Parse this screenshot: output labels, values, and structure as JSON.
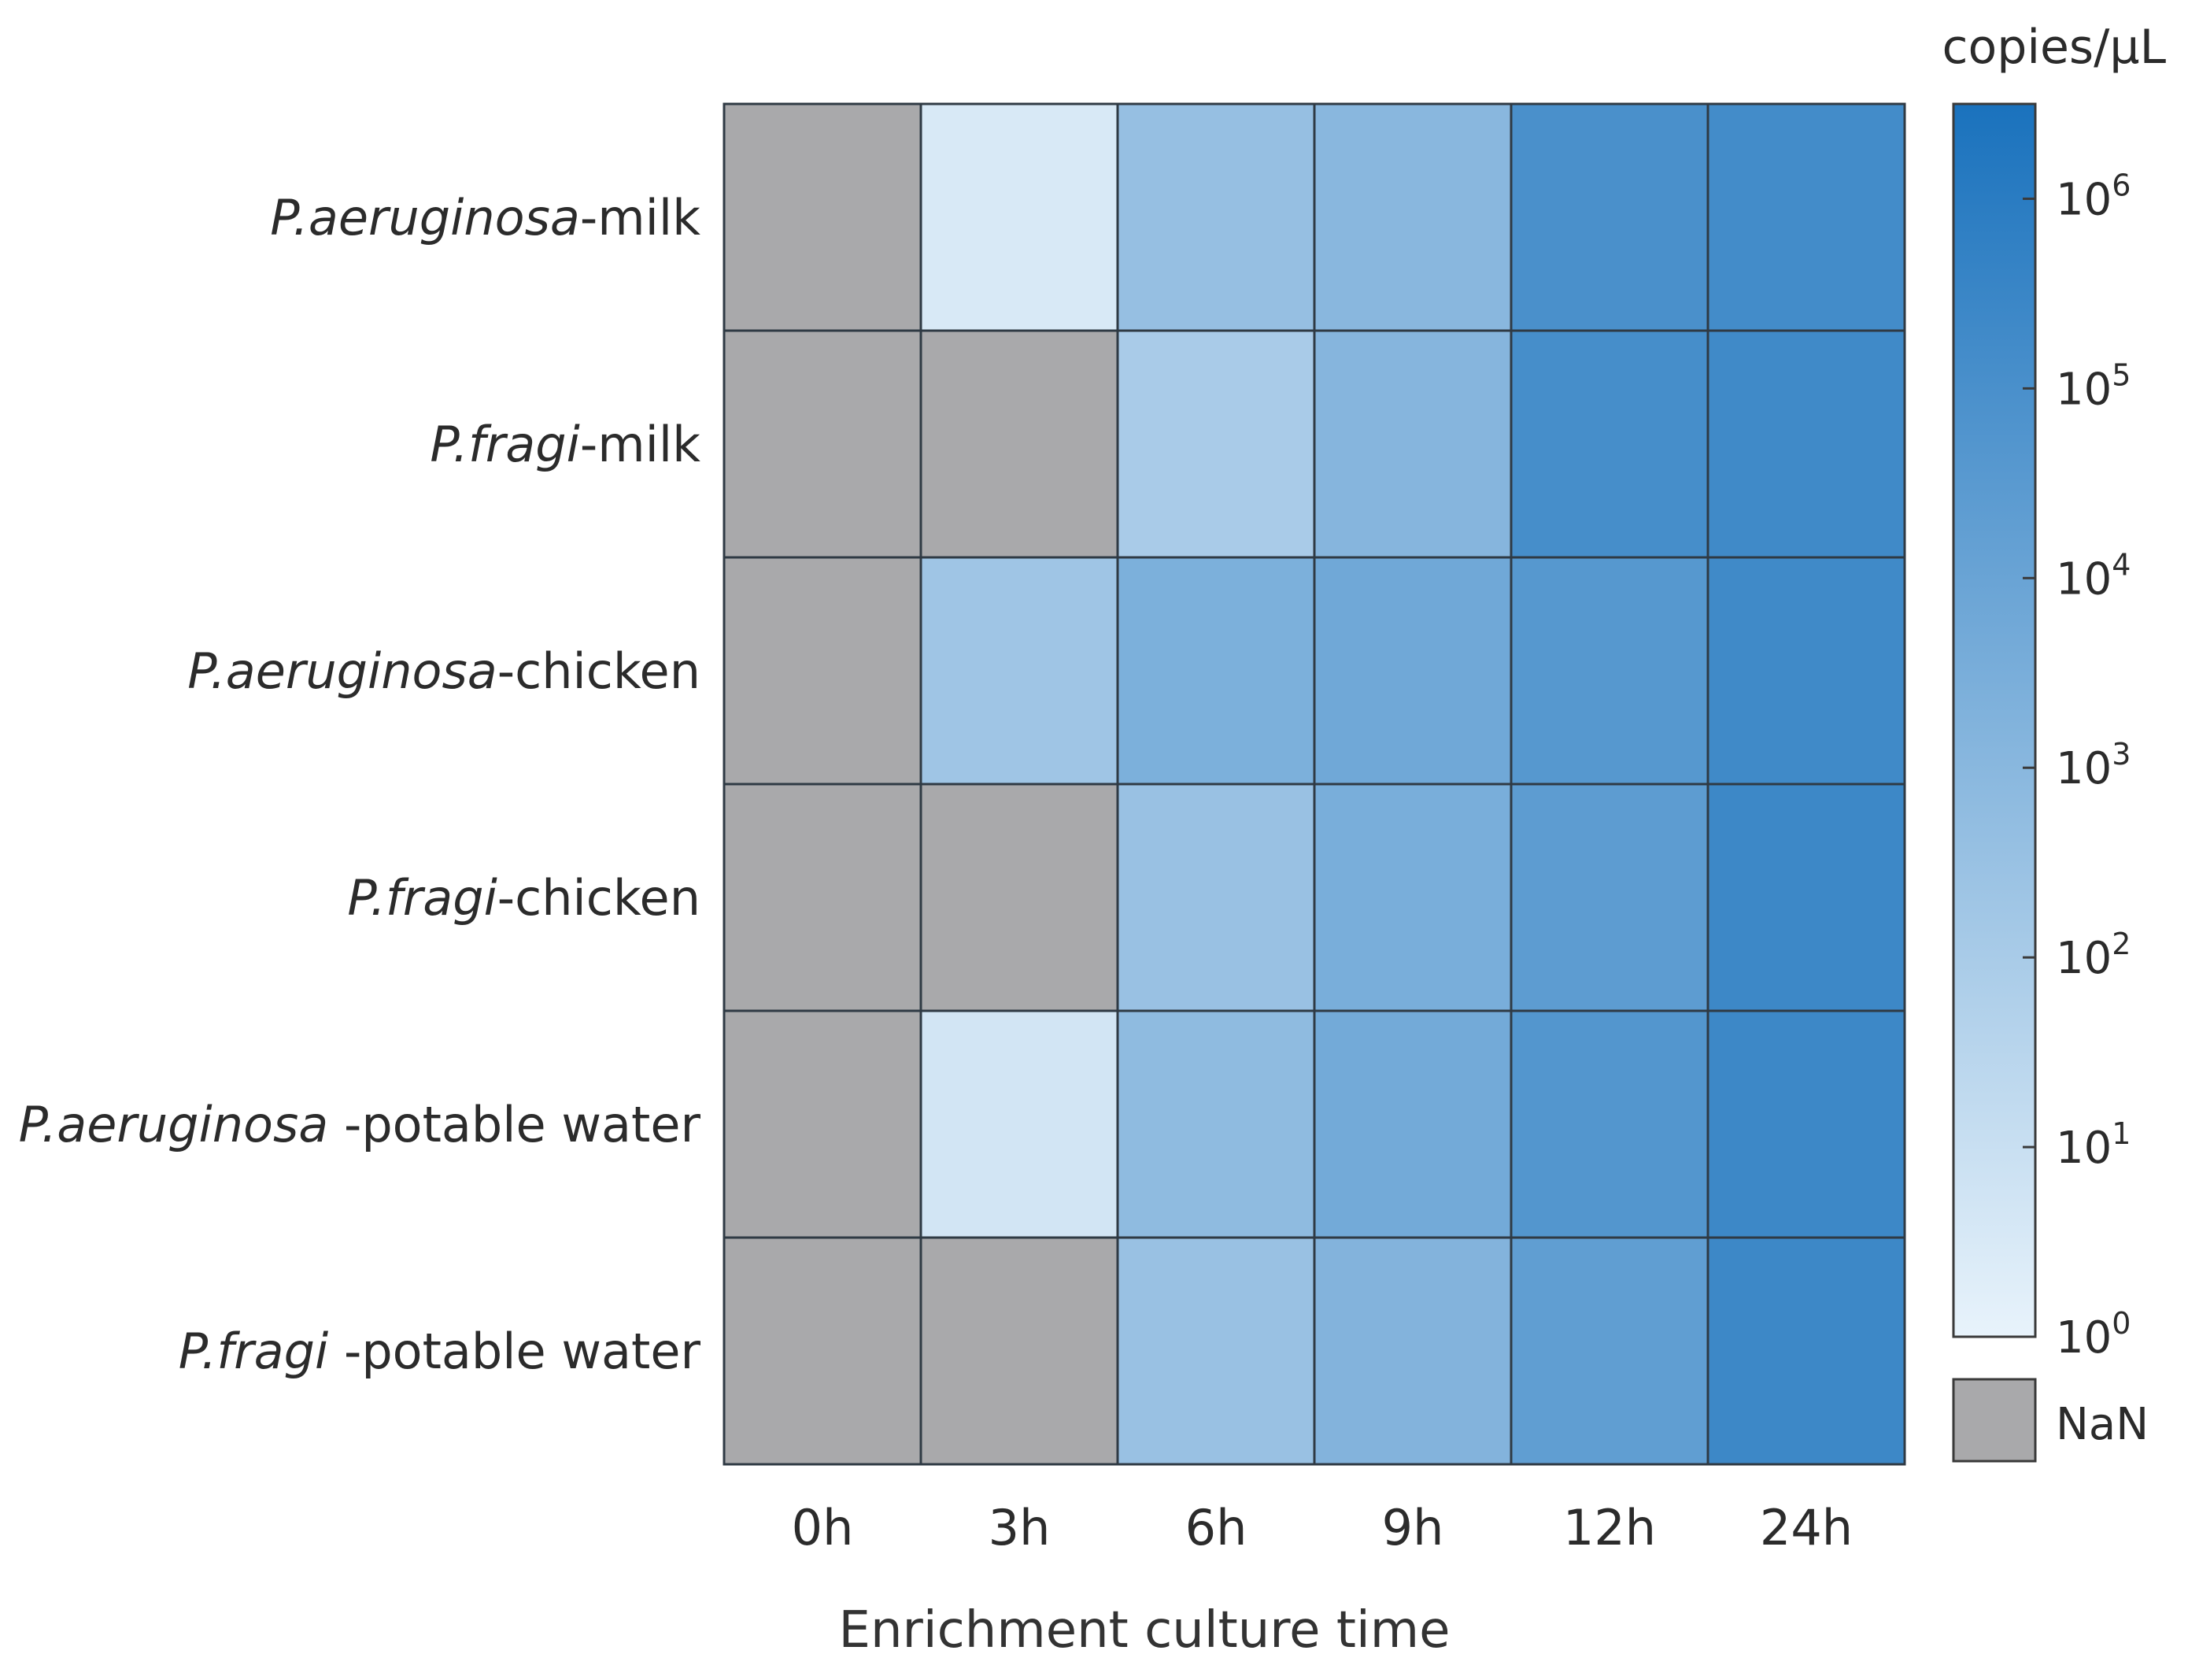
{
  "chart_data": {
    "type": "heatmap",
    "xlabel": "Enrichment culture time",
    "columns": [
      "0h",
      "3h",
      "6h",
      "9h",
      "12h",
      "24h"
    ],
    "rows": [
      {
        "species": "P.aeruginosa",
        "suffix": "-milk"
      },
      {
        "species": "P.fragi",
        "suffix": "-milk"
      },
      {
        "species": "P.aeruginosa",
        "suffix": "-chicken"
      },
      {
        "species": "P.fragi",
        "suffix": "-chicken"
      },
      {
        "species": "P.aeruginosa ",
        "suffix": "-potable water"
      },
      {
        "species": "P.fragi ",
        "suffix": "-potable water"
      }
    ],
    "value_unit": "log10(copies/µL)",
    "values": [
      [
        null,
        0.5,
        2.6,
        3.0,
        5.0,
        5.2
      ],
      [
        null,
        null,
        2.0,
        3.1,
        5.1,
        5.3
      ],
      [
        null,
        2.3,
        3.4,
        3.8,
        4.6,
        5.3
      ],
      [
        null,
        null,
        2.5,
        3.5,
        4.4,
        5.4
      ],
      [
        null,
        0.7,
        2.8,
        3.7,
        4.7,
        5.4
      ],
      [
        null,
        null,
        2.5,
        3.2,
        4.3,
        5.4
      ]
    ],
    "colorbar": {
      "label": "copies/µL",
      "scale": "log",
      "min_exponent": 0,
      "max_exponent": 6.5,
      "tick_exponents": [
        0,
        1,
        2,
        3,
        4,
        5,
        6
      ],
      "tick_base": "10",
      "color_low": "#e8f3fb",
      "color_high": "#1a72bd",
      "nan_label": "NaN",
      "nan_color": "#a9a9ab"
    },
    "grid": true,
    "cell_border_color": "#2f3a44"
  }
}
